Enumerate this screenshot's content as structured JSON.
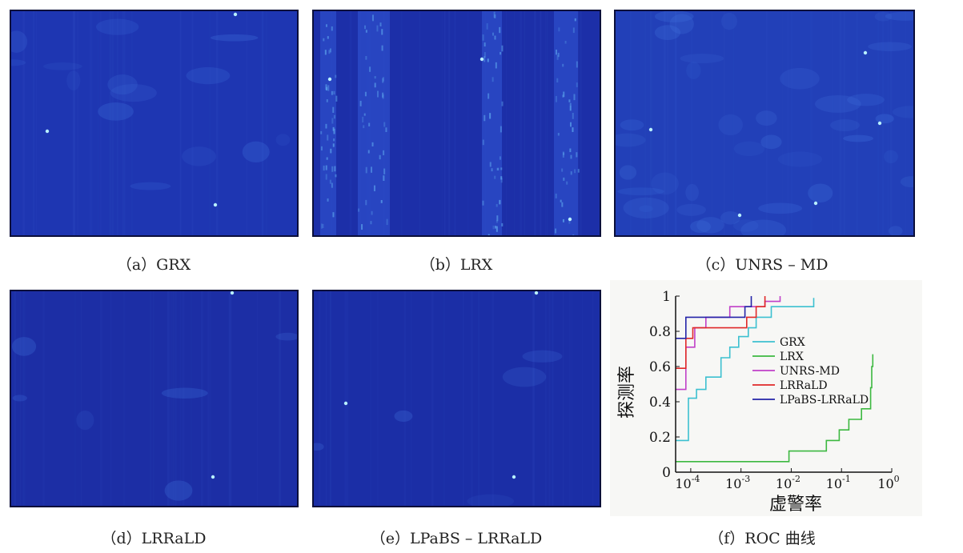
{
  "panels": [
    {
      "id": "a",
      "caption": "（a）GRX",
      "base_color": "#1e36b2"
    },
    {
      "id": "b",
      "caption": "（b）LRX",
      "base_color": "#1c2fa8"
    },
    {
      "id": "c",
      "caption": "（c）UNRS – MD",
      "base_color": "#2240b8"
    },
    {
      "id": "d",
      "caption": "（d）LRRaLD",
      "base_color": "#1c2ea5"
    },
    {
      "id": "e",
      "caption": "（e）LPaBS – LRRaLD",
      "base_color": "#1b2ea6"
    },
    {
      "id": "f",
      "caption": "（f）ROC 曲线"
    }
  ],
  "chart_data": {
    "type": "line",
    "xlabel": "虚警率",
    "ylabel": "探测率",
    "x_scale": "log",
    "xlim": [
      5e-05,
      1
    ],
    "ylim": [
      0,
      1
    ],
    "x_ticks": [
      {
        "value": 0.0001,
        "base": "10",
        "exp": "-4"
      },
      {
        "value": 0.001,
        "base": "10",
        "exp": "-3"
      },
      {
        "value": 0.01,
        "base": "10",
        "exp": "-2"
      },
      {
        "value": 0.1,
        "base": "10",
        "exp": "-1"
      },
      {
        "value": 1,
        "base": "10",
        "exp": "0"
      }
    ],
    "y_ticks": [
      {
        "value": 0,
        "label": "0"
      },
      {
        "value": 0.2,
        "label": "0.2"
      },
      {
        "value": 0.4,
        "label": "0.4"
      },
      {
        "value": 0.6,
        "label": "0.6"
      },
      {
        "value": 0.8,
        "label": "0.8"
      },
      {
        "value": 1,
        "label": "1"
      }
    ],
    "legend_position": "right-middle",
    "series": [
      {
        "name": "GRX",
        "color": "#3cc0d0",
        "points": [
          [
            5e-05,
            0.18
          ],
          [
            9e-05,
            0.18
          ],
          [
            9e-05,
            0.42
          ],
          [
            0.00013,
            0.42
          ],
          [
            0.00013,
            0.47
          ],
          [
            0.0002,
            0.47
          ],
          [
            0.0002,
            0.54
          ],
          [
            0.0004,
            0.54
          ],
          [
            0.0004,
            0.65
          ],
          [
            0.0006,
            0.65
          ],
          [
            0.0006,
            0.71
          ],
          [
            0.0009,
            0.71
          ],
          [
            0.0009,
            0.77
          ],
          [
            0.0014,
            0.77
          ],
          [
            0.0014,
            0.82
          ],
          [
            0.002,
            0.82
          ],
          [
            0.002,
            0.88
          ],
          [
            0.004,
            0.88
          ],
          [
            0.004,
            0.94
          ],
          [
            0.028,
            0.94
          ],
          [
            0.028,
            0.99
          ]
        ]
      },
      {
        "name": "LRX",
        "color": "#3cb840",
        "points": [
          [
            5e-05,
            0.06
          ],
          [
            0.009,
            0.06
          ],
          [
            0.009,
            0.12
          ],
          [
            0.05,
            0.12
          ],
          [
            0.05,
            0.18
          ],
          [
            0.09,
            0.18
          ],
          [
            0.09,
            0.24
          ],
          [
            0.14,
            0.24
          ],
          [
            0.14,
            0.3
          ],
          [
            0.25,
            0.3
          ],
          [
            0.25,
            0.36
          ],
          [
            0.38,
            0.36
          ],
          [
            0.38,
            0.48
          ],
          [
            0.4,
            0.48
          ],
          [
            0.4,
            0.6
          ],
          [
            0.42,
            0.6
          ],
          [
            0.42,
            0.67
          ]
        ]
      },
      {
        "name": "UNRS-MD",
        "color": "#c040c8",
        "points": [
          [
            5e-05,
            0.47
          ],
          [
            8e-05,
            0.47
          ],
          [
            8e-05,
            0.71
          ],
          [
            0.00012,
            0.71
          ],
          [
            0.00012,
            0.82
          ],
          [
            0.0002,
            0.82
          ],
          [
            0.0002,
            0.88
          ],
          [
            0.0006,
            0.88
          ],
          [
            0.0006,
            0.94
          ],
          [
            0.003,
            0.94
          ],
          [
            0.003,
            0.97
          ],
          [
            0.006,
            0.97
          ],
          [
            0.006,
            1.0
          ]
        ]
      },
      {
        "name": "LRRaLD",
        "color": "#e02828",
        "points": [
          [
            5e-05,
            0.59
          ],
          [
            8e-05,
            0.59
          ],
          [
            8e-05,
            0.76
          ],
          [
            0.00011,
            0.76
          ],
          [
            0.00011,
            0.82
          ],
          [
            0.0013,
            0.82
          ],
          [
            0.0013,
            0.88
          ],
          [
            0.002,
            0.88
          ],
          [
            0.002,
            0.94
          ],
          [
            0.003,
            0.94
          ],
          [
            0.003,
            1.0
          ]
        ]
      },
      {
        "name": "LPaBS-LRRaLD",
        "color": "#2424a8",
        "points": [
          [
            5e-05,
            0.76
          ],
          [
            8e-05,
            0.76
          ],
          [
            8e-05,
            0.88
          ],
          [
            0.0012,
            0.88
          ],
          [
            0.0012,
            0.94
          ],
          [
            0.0016,
            0.94
          ],
          [
            0.0016,
            1.0
          ]
        ]
      }
    ]
  }
}
